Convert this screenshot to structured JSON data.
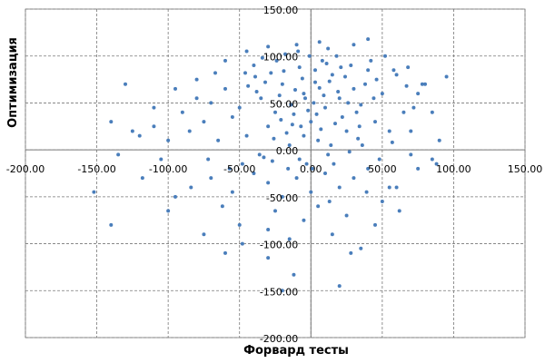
{
  "chart_data": {
    "type": "scatter",
    "x_label": "Форвард тесты",
    "y_label": "Оптимизация",
    "color": "#4a7ebb",
    "grid": true,
    "xlim": [
      -200,
      150
    ],
    "ylim": [
      -200,
      150
    ],
    "xticks": [
      {
        "value": -200,
        "label": "-200.00"
      },
      {
        "value": -150,
        "label": "-150.00"
      },
      {
        "value": -100,
        "label": "-100.00"
      },
      {
        "value": -50,
        "label": "-50.00"
      },
      {
        "value": 0,
        "label": "0.00"
      },
      {
        "value": 50,
        "label": "50.00"
      },
      {
        "value": 100,
        "label": "100.00"
      },
      {
        "value": 150,
        "label": "150.00"
      }
    ],
    "yticks": [
      {
        "value": -200,
        "label": "-200.00"
      },
      {
        "value": -150,
        "label": "-150.00"
      },
      {
        "value": -100,
        "label": "-100.00"
      },
      {
        "value": -50,
        "label": "-50.00"
      },
      {
        "value": 0,
        "label": "0.00"
      },
      {
        "value": 50,
        "label": "50.00"
      },
      {
        "value": 100,
        "label": "100.00"
      },
      {
        "value": 150,
        "label": "150.00"
      }
    ],
    "x": [
      -5,
      3,
      10,
      -12,
      20,
      15,
      -20,
      0,
      8,
      -8,
      25,
      -25,
      30,
      -30,
      5,
      12,
      -15,
      35,
      -35,
      40,
      -40,
      18,
      -18,
      45,
      -45,
      2,
      -2,
      6,
      -6,
      22,
      -22,
      28,
      -28,
      33,
      -33,
      38,
      -38,
      42,
      50,
      -50,
      55,
      -55,
      60,
      -60,
      65,
      -65,
      48,
      -48,
      10,
      -10,
      0,
      20,
      -20,
      5,
      -5,
      15,
      -15,
      25,
      -25,
      30,
      -30,
      40,
      -40,
      55,
      -55,
      70,
      -70,
      75,
      -75,
      80,
      -80,
      85,
      -85,
      90,
      -90,
      95,
      -95,
      -100,
      -105,
      -110,
      -120,
      -125,
      -130,
      -135,
      -140,
      -152,
      -100,
      -140,
      -95,
      -75,
      -60,
      -48,
      -30,
      -20,
      -12,
      -30,
      20,
      28,
      35,
      45,
      60,
      75,
      85,
      -110,
      -80,
      -60,
      -45,
      -30,
      -10,
      12,
      30,
      40,
      52,
      58,
      68,
      78,
      70,
      -5,
      7,
      -3,
      14,
      -8,
      9,
      -14,
      17,
      -17,
      24,
      -24,
      32,
      -32,
      36,
      -36,
      44,
      -44,
      3,
      -1,
      11,
      -11,
      19,
      -19,
      26,
      -26,
      1,
      16,
      -16,
      -62,
      62,
      -50,
      50,
      -84,
      -70,
      88,
      -118,
      -7,
      4,
      13,
      -13,
      21,
      -21,
      27,
      -27,
      34,
      -34,
      39,
      -39,
      46,
      -46,
      -4,
      6,
      -9,
      13,
      -57,
      57,
      67,
      -67,
      72,
      -72
    ],
    "y": [
      60,
      72,
      45,
      38,
      55,
      80,
      70,
      30,
      95,
      88,
      20,
      40,
      65,
      25,
      10,
      -5,
      5,
      48,
      55,
      85,
      90,
      100,
      102,
      30,
      15,
      50,
      42,
      66,
      76,
      35,
      58,
      90,
      82,
      12,
      -8,
      70,
      62,
      95,
      60,
      45,
      20,
      35,
      80,
      65,
      40,
      10,
      -10,
      -15,
      -25,
      -30,
      -45,
      -40,
      -50,
      -60,
      -75,
      -90,
      -95,
      -70,
      -65,
      -30,
      -35,
      -20,
      -25,
      -40,
      -45,
      20,
      50,
      60,
      30,
      70,
      55,
      40,
      20,
      10,
      40,
      78,
      65,
      10,
      -10,
      25,
      15,
      20,
      70,
      -5,
      -80,
      -45,
      -65,
      30,
      -50,
      -90,
      -110,
      -100,
      -85,
      -150,
      -133,
      -115,
      -145,
      -110,
      -105,
      -80,
      -40,
      -20,
      -10,
      45,
      75,
      95,
      105,
      110,
      112,
      108,
      112,
      118,
      100,
      85,
      88,
      70,
      -5,
      15,
      22,
      -15,
      5,
      -10,
      58,
      48,
      28,
      18,
      78,
      95,
      40,
      72,
      5,
      -5,
      55,
      68,
      85,
      100,
      92,
      64,
      62,
      84,
      50,
      12,
      -20,
      -15,
      -20,
      -60,
      -65,
      -80,
      -55,
      -40,
      -30,
      -15,
      -30,
      25,
      38,
      73,
      27,
      88,
      32,
      -2,
      -12,
      25,
      98,
      -45,
      78,
      75,
      82,
      55,
      115,
      105,
      -55,
      -20,
      8,
      68,
      82,
      45,
      -10
    ]
  }
}
